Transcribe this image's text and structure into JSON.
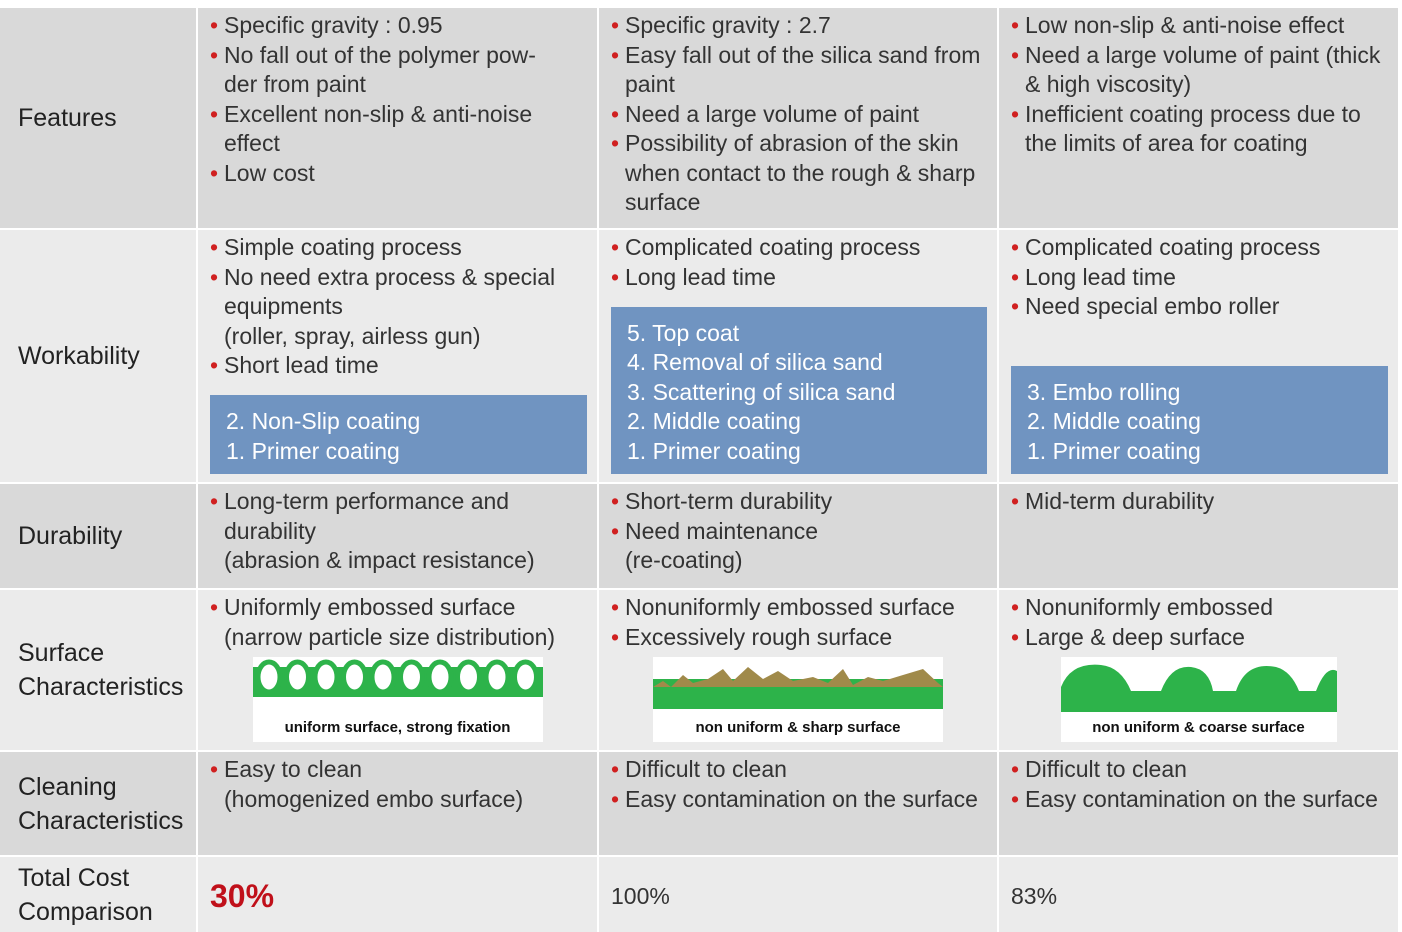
{
  "rows": [
    {
      "label": "Features",
      "cells": [
        {
          "bullets": [
            "Specific gravity : 0.95",
            "No fall out of the polymer pow-\nder from paint",
            "Excellent non-slip & anti-noise effect",
            "Low  cost"
          ]
        },
        {
          "bullets": [
            "Specific gravity : 2.7",
            "Easy fall out of the silica sand from paint",
            "Need a large volume of paint",
            "Possibility of abrasion  of the skin when contact to the rough & sharp surface"
          ]
        },
        {
          "bullets": [
            "Low non-slip & anti-noise effect",
            "Need a large volume of paint (thick & high viscosity)",
            "Inefficient coating  process due to the limits of  area for coating"
          ]
        }
      ]
    },
    {
      "label": "Workability",
      "cells": [
        {
          "bullets": [
            "Simple coating process",
            "No need extra process  & special equipments\n(roller, spray, airless gun)",
            "Short lead time"
          ],
          "steps": [
            "2. Non-Slip coating",
            "1. Primer coating"
          ]
        },
        {
          "bullets": [
            "Complicated coating process",
            "Long lead time"
          ],
          "steps": [
            "5. Top coat",
            "4. Removal of silica sand",
            "3. Scattering of silica sand",
            "2. Middle coating",
            "1. Primer coating"
          ]
        },
        {
          "bullets": [
            "Complicated coating process",
            "Long lead time",
            "Need special embo roller"
          ],
          "steps": [
            "3. Embo rolling",
            "2. Middle coating",
            "1. Primer coating"
          ]
        }
      ]
    },
    {
      "label": "Durability",
      "cells": [
        {
          "bullets": [
            "Long-term performance and durability\n(abrasion & impact resistance)"
          ]
        },
        {
          "bullets": [
            "Short-term durability",
            "Need maintenance\n(re-coating)"
          ]
        },
        {
          "bullets": [
            "Mid-term durability"
          ]
        }
      ]
    },
    {
      "label": "Surface Characteristics",
      "cells": [
        {
          "bullets": [
            "Uniformly embossed surface\n(narrow particle size distribution)"
          ],
          "caption": "uniform surface, strong fixation"
        },
        {
          "bullets": [
            "Nonuniformly embossed surface",
            "Excessively rough surface"
          ],
          "caption": "non uniform & sharp surface"
        },
        {
          "bullets": [
            "Nonuniformly embossed",
            "Large & deep surface"
          ],
          "caption": "non uniform & coarse surface"
        }
      ]
    },
    {
      "label": "Cleaning Characteristics",
      "cells": [
        {
          "bullets": [
            "Easy to clean\n(homogenized embo surface)"
          ]
        },
        {
          "bullets": [
            "Difficult to clean",
            "Easy contamination on the surface"
          ]
        },
        {
          "bullets": [
            "Difficult to clean",
            "Easy contamination on the surface"
          ]
        }
      ]
    },
    {
      "label": "Total Cost Comparison",
      "cells": [
        {
          "value": "30%"
        },
        {
          "value": "100%"
        },
        {
          "value": "83%"
        }
      ]
    }
  ]
}
